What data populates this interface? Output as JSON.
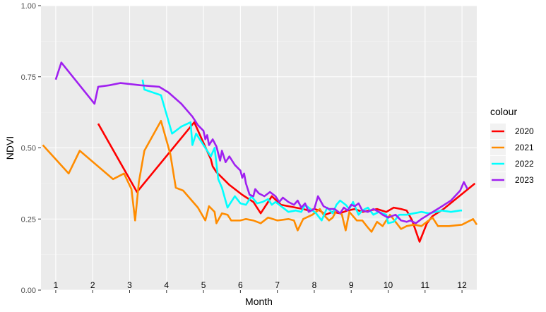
{
  "chart_data": {
    "type": "line",
    "xlabel": "Month",
    "ylabel": "NDVI",
    "ylim": [
      0,
      1
    ],
    "xlim": [
      0.6,
      12.4
    ],
    "y_ticks": [
      "0.00",
      "0.25",
      "0.50",
      "0.75",
      "1.00"
    ],
    "y_tick_values": [
      0,
      0.25,
      0.5,
      0.75,
      1.0
    ],
    "month_labels": [
      "1",
      "2",
      "3",
      "4",
      "5",
      "6",
      "7",
      "8",
      "9",
      "10",
      "11",
      "12"
    ],
    "legend": {
      "title": "colour",
      "position": "right"
    },
    "grid": true,
    "background": "#ebebeb",
    "series": [
      {
        "name": "2020",
        "color": "#ff0000",
        "points": [
          [
            2.15,
            0.585
          ],
          [
            3.2,
            0.345
          ],
          [
            4.75,
            0.59
          ],
          [
            5.2,
            0.46
          ],
          [
            5.25,
            0.435
          ],
          [
            5.35,
            0.415
          ],
          [
            5.7,
            0.37
          ],
          [
            6.05,
            0.335
          ],
          [
            6.35,
            0.31
          ],
          [
            6.55,
            0.27
          ],
          [
            6.85,
            0.33
          ],
          [
            7.1,
            0.3
          ],
          [
            7.3,
            0.295
          ],
          [
            7.5,
            0.29
          ],
          [
            7.7,
            0.285
          ],
          [
            7.85,
            0.28
          ],
          [
            8.0,
            0.285
          ],
          [
            8.15,
            0.28
          ],
          [
            8.3,
            0.265
          ],
          [
            8.5,
            0.275
          ],
          [
            8.7,
            0.27
          ],
          [
            8.9,
            0.28
          ],
          [
            9.1,
            0.285
          ],
          [
            9.3,
            0.275
          ],
          [
            9.5,
            0.28
          ],
          [
            9.7,
            0.285
          ],
          [
            9.95,
            0.275
          ],
          [
            10.15,
            0.29
          ],
          [
            10.35,
            0.285
          ],
          [
            10.5,
            0.28
          ],
          [
            10.65,
            0.245
          ],
          [
            10.85,
            0.17
          ],
          [
            11.05,
            0.235
          ],
          [
            11.2,
            0.26
          ],
          [
            11.5,
            0.285
          ],
          [
            12.35,
            0.375
          ]
        ]
      },
      {
        "name": "2021",
        "color": "#ff8c00",
        "points": [
          [
            0.65,
            0.51
          ],
          [
            1.35,
            0.41
          ],
          [
            1.65,
            0.49
          ],
          [
            2.55,
            0.39
          ],
          [
            2.85,
            0.41
          ],
          [
            3.05,
            0.355
          ],
          [
            3.15,
            0.245
          ],
          [
            3.25,
            0.38
          ],
          [
            3.4,
            0.49
          ],
          [
            3.85,
            0.595
          ],
          [
            4.1,
            0.48
          ],
          [
            4.25,
            0.36
          ],
          [
            4.45,
            0.35
          ],
          [
            4.85,
            0.29
          ],
          [
            5.05,
            0.245
          ],
          [
            5.15,
            0.295
          ],
          [
            5.3,
            0.275
          ],
          [
            5.35,
            0.235
          ],
          [
            5.5,
            0.27
          ],
          [
            5.65,
            0.265
          ],
          [
            5.75,
            0.245
          ],
          [
            6.0,
            0.245
          ],
          [
            6.15,
            0.25
          ],
          [
            6.35,
            0.245
          ],
          [
            6.55,
            0.235
          ],
          [
            6.75,
            0.255
          ],
          [
            7.0,
            0.245
          ],
          [
            7.3,
            0.25
          ],
          [
            7.45,
            0.245
          ],
          [
            7.55,
            0.21
          ],
          [
            7.7,
            0.25
          ],
          [
            7.95,
            0.265
          ],
          [
            8.15,
            0.285
          ],
          [
            8.25,
            0.265
          ],
          [
            8.4,
            0.245
          ],
          [
            8.5,
            0.255
          ],
          [
            8.6,
            0.28
          ],
          [
            8.75,
            0.265
          ],
          [
            8.85,
            0.21
          ],
          [
            8.95,
            0.275
          ],
          [
            9.15,
            0.245
          ],
          [
            9.3,
            0.245
          ],
          [
            9.45,
            0.22
          ],
          [
            9.55,
            0.205
          ],
          [
            9.7,
            0.24
          ],
          [
            9.85,
            0.225
          ],
          [
            10.05,
            0.265
          ],
          [
            10.2,
            0.24
          ],
          [
            10.35,
            0.215
          ],
          [
            10.5,
            0.225
          ],
          [
            10.7,
            0.23
          ],
          [
            10.9,
            0.225
          ],
          [
            11.2,
            0.255
          ],
          [
            11.35,
            0.225
          ],
          [
            11.65,
            0.225
          ],
          [
            12.0,
            0.23
          ],
          [
            12.3,
            0.25
          ],
          [
            12.4,
            0.23
          ]
        ]
      },
      {
        "name": "2022",
        "color": "#00ffff",
        "points": [
          [
            3.35,
            0.74
          ],
          [
            3.4,
            0.705
          ],
          [
            3.85,
            0.685
          ],
          [
            4.05,
            0.595
          ],
          [
            4.15,
            0.55
          ],
          [
            4.4,
            0.575
          ],
          [
            4.65,
            0.59
          ],
          [
            4.7,
            0.51
          ],
          [
            4.8,
            0.55
          ],
          [
            5.05,
            0.5
          ],
          [
            5.2,
            0.47
          ],
          [
            5.3,
            0.5
          ],
          [
            5.4,
            0.39
          ],
          [
            5.5,
            0.36
          ],
          [
            5.65,
            0.29
          ],
          [
            5.85,
            0.33
          ],
          [
            6.0,
            0.305
          ],
          [
            6.15,
            0.3
          ],
          [
            6.3,
            0.33
          ],
          [
            6.45,
            0.305
          ],
          [
            6.6,
            0.31
          ],
          [
            6.75,
            0.32
          ],
          [
            6.85,
            0.3
          ],
          [
            6.95,
            0.31
          ],
          [
            7.05,
            0.3
          ],
          [
            7.3,
            0.275
          ],
          [
            7.5,
            0.28
          ],
          [
            7.65,
            0.275
          ],
          [
            7.75,
            0.3
          ],
          [
            7.9,
            0.285
          ],
          [
            8.05,
            0.27
          ],
          [
            8.2,
            0.245
          ],
          [
            8.35,
            0.29
          ],
          [
            8.5,
            0.27
          ],
          [
            8.6,
            0.3
          ],
          [
            8.7,
            0.315
          ],
          [
            8.85,
            0.3
          ],
          [
            8.95,
            0.285
          ],
          [
            9.05,
            0.31
          ],
          [
            9.2,
            0.265
          ],
          [
            9.3,
            0.28
          ],
          [
            9.45,
            0.29
          ],
          [
            9.6,
            0.265
          ],
          [
            9.75,
            0.275
          ],
          [
            9.95,
            0.265
          ],
          [
            10.0,
            0.235
          ],
          [
            10.15,
            0.24
          ],
          [
            10.3,
            0.265
          ],
          [
            10.5,
            0.265
          ],
          [
            10.7,
            0.27
          ],
          [
            10.9,
            0.275
          ],
          [
            11.1,
            0.27
          ],
          [
            11.3,
            0.275
          ],
          [
            11.45,
            0.28
          ],
          [
            11.7,
            0.275
          ],
          [
            11.95,
            0.28
          ],
          [
            12.0,
            0.28
          ]
        ]
      },
      {
        "name": "2023",
        "color": "#a020f0",
        "points": [
          [
            1.0,
            0.74
          ],
          [
            1.15,
            0.8
          ],
          [
            2.05,
            0.655
          ],
          [
            2.15,
            0.715
          ],
          [
            2.45,
            0.72
          ],
          [
            2.75,
            0.728
          ],
          [
            3.3,
            0.72
          ],
          [
            3.8,
            0.715
          ],
          [
            4.05,
            0.695
          ],
          [
            4.4,
            0.655
          ],
          [
            4.7,
            0.61
          ],
          [
            4.85,
            0.58
          ],
          [
            5.0,
            0.56
          ],
          [
            5.05,
            0.53
          ],
          [
            5.1,
            0.545
          ],
          [
            5.15,
            0.51
          ],
          [
            5.25,
            0.53
          ],
          [
            5.35,
            0.505
          ],
          [
            5.45,
            0.455
          ],
          [
            5.5,
            0.49
          ],
          [
            5.6,
            0.45
          ],
          [
            5.7,
            0.47
          ],
          [
            5.85,
            0.44
          ],
          [
            6.0,
            0.42
          ],
          [
            6.05,
            0.395
          ],
          [
            6.1,
            0.41
          ],
          [
            6.15,
            0.375
          ],
          [
            6.25,
            0.335
          ],
          [
            6.35,
            0.33
          ],
          [
            6.4,
            0.355
          ],
          [
            6.5,
            0.34
          ],
          [
            6.65,
            0.33
          ],
          [
            6.8,
            0.345
          ],
          [
            6.95,
            0.33
          ],
          [
            7.05,
            0.31
          ],
          [
            7.15,
            0.325
          ],
          [
            7.3,
            0.31
          ],
          [
            7.45,
            0.3
          ],
          [
            7.55,
            0.315
          ],
          [
            7.65,
            0.29
          ],
          [
            7.75,
            0.305
          ],
          [
            7.85,
            0.275
          ],
          [
            8.0,
            0.285
          ],
          [
            8.1,
            0.33
          ],
          [
            8.25,
            0.295
          ],
          [
            8.4,
            0.285
          ],
          [
            8.55,
            0.285
          ],
          [
            8.7,
            0.27
          ],
          [
            8.8,
            0.29
          ],
          [
            8.9,
            0.28
          ],
          [
            9.0,
            0.3
          ],
          [
            9.1,
            0.295
          ],
          [
            9.2,
            0.305
          ],
          [
            9.3,
            0.28
          ],
          [
            9.45,
            0.275
          ],
          [
            9.6,
            0.285
          ],
          [
            9.75,
            0.275
          ],
          [
            9.85,
            0.265
          ],
          [
            10.0,
            0.255
          ],
          [
            10.2,
            0.265
          ],
          [
            10.35,
            0.245
          ],
          [
            10.5,
            0.24
          ],
          [
            10.6,
            0.245
          ],
          [
            10.75,
            0.235
          ],
          [
            10.9,
            0.25
          ],
          [
            11.15,
            0.27
          ],
          [
            11.4,
            0.29
          ],
          [
            11.7,
            0.315
          ],
          [
            11.95,
            0.35
          ],
          [
            12.05,
            0.38
          ],
          [
            12.15,
            0.355
          ]
        ]
      }
    ]
  }
}
